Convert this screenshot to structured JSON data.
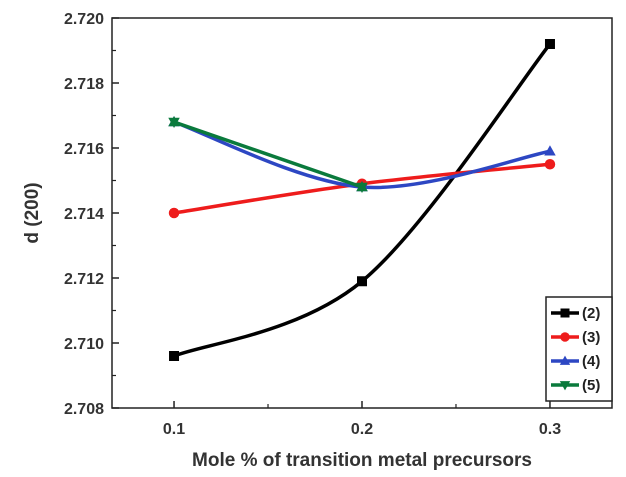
{
  "chart_data": {
    "type": "line",
    "title": "",
    "xlabel": "Mole % of transition metal precursors",
    "ylabel": "d (200)",
    "x": [
      0.1,
      0.2,
      0.3
    ],
    "x_tick_labels": [
      "0.1",
      "0.2",
      "0.3"
    ],
    "xlim": [
      0.067,
      0.333
    ],
    "ylim": [
      2.708,
      2.72
    ],
    "y_ticks": [
      2.708,
      2.71,
      2.712,
      2.714,
      2.716,
      2.718,
      2.72
    ],
    "y_tick_labels": [
      "2.708",
      "2.710",
      "2.712",
      "2.714",
      "2.716",
      "2.718",
      "2.720"
    ],
    "grid": false,
    "legend_position": "bottom-right",
    "series": [
      {
        "name": "(2)",
        "color": "#000000",
        "marker": "square",
        "values": [
          2.7096,
          2.7119,
          2.7192
        ]
      },
      {
        "name": "(3)",
        "color": "#ee1c1c",
        "marker": "circle",
        "values": [
          2.714,
          2.7149,
          2.7155
        ]
      },
      {
        "name": "(4)",
        "color": "#2d47c3",
        "marker": "triangle-up",
        "values": [
          2.7168,
          2.7148,
          2.7159
        ]
      },
      {
        "name": "(5)",
        "color": "#0a7a3c",
        "marker": "triangle-down",
        "values": [
          2.7168,
          2.7148,
          null
        ]
      }
    ]
  }
}
